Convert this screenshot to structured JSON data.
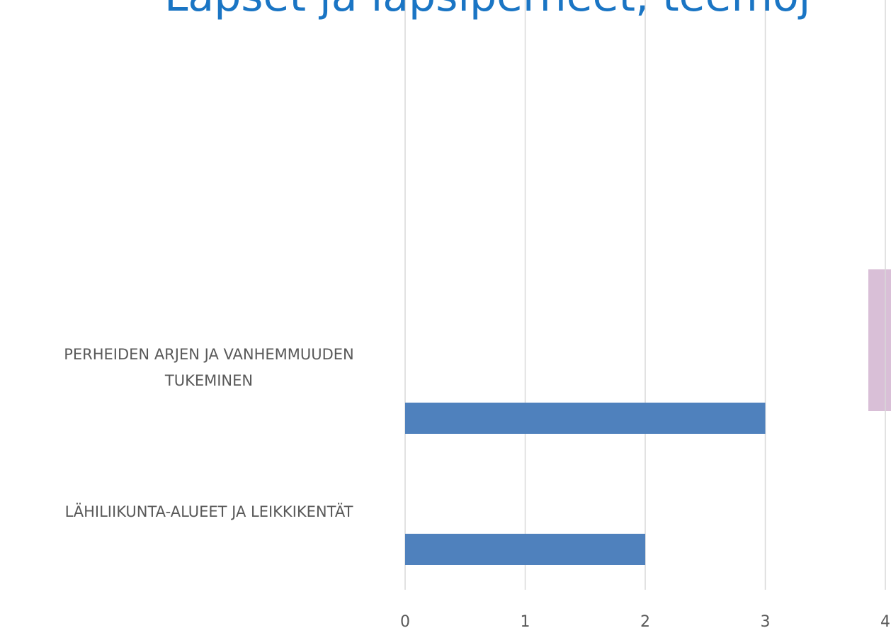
{
  "chart_data": {
    "type": "barh",
    "title": "Lapset ja lapsiperheet, teemoj",
    "categories": [
      "PERHEIDEN ARJEN JA VANHEMMUUDEN TUKEMINEN",
      "LÄHILIIKUNTA-ALUEET JA LEIKKIKENTÄT"
    ],
    "values": [
      3,
      2
    ],
    "color": "#4f81bd",
    "xlim": [
      0,
      4
    ],
    "xticks": [
      0,
      1,
      2,
      3,
      4
    ],
    "grid": true
  }
}
